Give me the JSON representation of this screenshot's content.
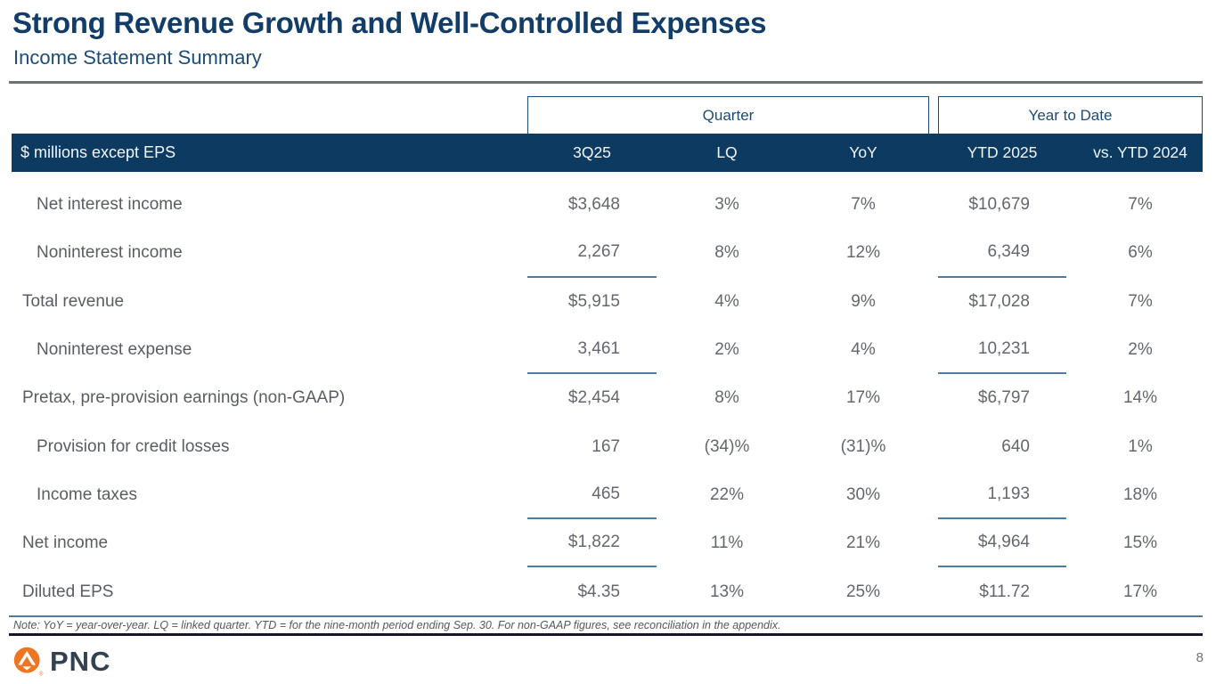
{
  "slide": {
    "title": "Strong Revenue Growth and Well-Controlled Expenses",
    "subtitle": "Income Statement Summary",
    "note": "Note: YoY = year-over-year.  LQ = linked quarter. YTD = for the nine-month period ending Sep. 30. For non-GAAP figures, see reconciliation in the appendix.",
    "page_number": "8",
    "logo_text": "PNC"
  },
  "table": {
    "group_headers": {
      "quarter": "Quarter",
      "year_to_date": "Year to Date"
    },
    "header": {
      "label_column": "$ millions except EPS",
      "columns": [
        "3Q25",
        "LQ",
        "YoY",
        "YTD 2025",
        "vs. YTD 2024"
      ]
    },
    "rows": [
      {
        "label": "Net interest income",
        "indent": true,
        "values": [
          "$3,648",
          "3%",
          "7%",
          "$10,679",
          "7%"
        ],
        "underline": false
      },
      {
        "label": "Noninterest income",
        "indent": true,
        "values": [
          "2,267",
          "8%",
          "12%",
          "6,349",
          "6%"
        ],
        "underline": true
      },
      {
        "label": "Total revenue",
        "indent": false,
        "values": [
          "$5,915",
          "4%",
          "9%",
          "$17,028",
          "7%"
        ],
        "underline": false
      },
      {
        "label": "Noninterest expense",
        "indent": true,
        "values": [
          "3,461",
          "2%",
          "4%",
          "10,231",
          "2%"
        ],
        "underline": true
      },
      {
        "label": "Pretax, pre-provision earnings (non-GAAP)",
        "indent": false,
        "values": [
          "$2,454",
          "8%",
          "17%",
          "$6,797",
          "14%"
        ],
        "underline": false
      },
      {
        "label": "Provision for credit losses",
        "indent": true,
        "values": [
          "167",
          "(34)%",
          "(31)%",
          "640",
          "1%"
        ],
        "underline": false
      },
      {
        "label": "Income taxes",
        "indent": true,
        "values": [
          "465",
          "22%",
          "30%",
          "1,193",
          "18%"
        ],
        "underline": true
      },
      {
        "label": "Net income",
        "indent": false,
        "values": [
          "$1,822",
          "11%",
          "21%",
          "$4,964",
          "15%"
        ],
        "underline": true
      },
      {
        "label": "Diluted EPS",
        "indent": false,
        "values": [
          "$4.35",
          "13%",
          "25%",
          "$11.72",
          "17%"
        ],
        "underline": false
      }
    ]
  },
  "colors": {
    "header_band": "#0d3a60",
    "title_navy": "#113d68",
    "subtitle_navy": "#1d4c78",
    "sum_underline": "#4e7ba4",
    "note_rule_top": "#53799c",
    "note_rule_bottom": "#15162e",
    "body_text": "#63676d",
    "logo_orange": "#ee7623",
    "logo_wordmark": "#33424e"
  }
}
